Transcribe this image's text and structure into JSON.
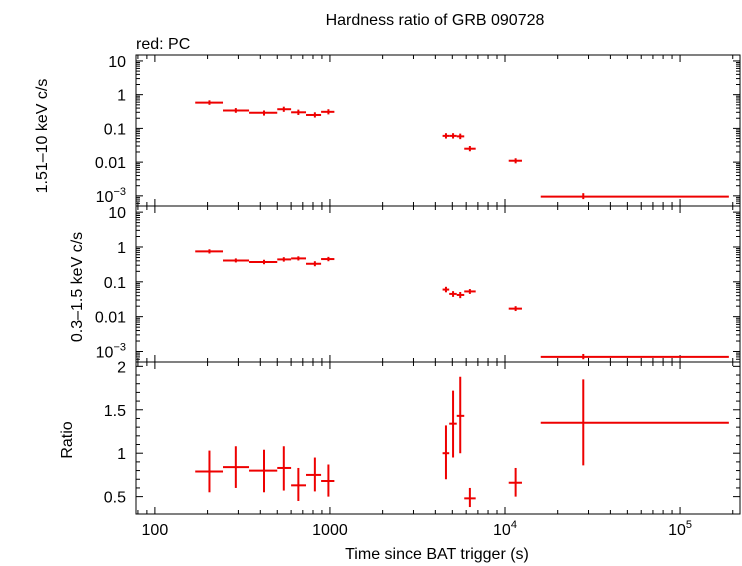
{
  "title": "Hardness ratio of GRB 090728",
  "subtitle": "red: PC",
  "xlabel": "Time since BAT trigger (s)",
  "x_ticks": [
    {
      "value": 100,
      "base": "100",
      "sup": ""
    },
    {
      "value": 1000,
      "base": "1000",
      "sup": ""
    },
    {
      "value": 10000,
      "base": "10",
      "sup": "4"
    },
    {
      "value": 100000,
      "base": "10",
      "sup": "5"
    }
  ],
  "colors": {
    "series": "#ee0000",
    "axes": "#000000"
  },
  "chart_data": [
    {
      "type": "scatter",
      "panel": "top",
      "ylabel": "1.51–10 keV c/s",
      "yscale": "log",
      "xscale": "log",
      "ylim": [
        0.0005,
        15
      ],
      "xlim": [
        78,
        220000
      ],
      "y_ticks": [
        {
          "value": 10,
          "base": "10",
          "sup": ""
        },
        {
          "value": 1,
          "base": "1",
          "sup": ""
        },
        {
          "value": 0.1,
          "base": "0.1",
          "sup": ""
        },
        {
          "value": 0.01,
          "base": "0.01",
          "sup": ""
        },
        {
          "value": 0.001,
          "base": "10",
          "sup": "−3"
        }
      ],
      "series": [
        {
          "name": "PC",
          "points": [
            {
              "x": 205,
              "xlo": 170,
              "xhi": 245,
              "y": 0.58,
              "ylo": 0.5,
              "yhi": 0.68
            },
            {
              "x": 290,
              "xlo": 245,
              "xhi": 345,
              "y": 0.34,
              "ylo": 0.29,
              "yhi": 0.4
            },
            {
              "x": 420,
              "xlo": 345,
              "xhi": 500,
              "y": 0.29,
              "ylo": 0.24,
              "yhi": 0.34
            },
            {
              "x": 545,
              "xlo": 500,
              "xhi": 600,
              "y": 0.37,
              "ylo": 0.31,
              "yhi": 0.44
            },
            {
              "x": 660,
              "xlo": 600,
              "xhi": 730,
              "y": 0.3,
              "ylo": 0.25,
              "yhi": 0.36
            },
            {
              "x": 820,
              "xlo": 730,
              "xhi": 890,
              "y": 0.25,
              "ylo": 0.21,
              "yhi": 0.3
            },
            {
              "x": 980,
              "xlo": 890,
              "xhi": 1060,
              "y": 0.31,
              "ylo": 0.26,
              "yhi": 0.37
            },
            {
              "x": 4600,
              "xlo": 4400,
              "xhi": 4800,
              "y": 0.06,
              "ylo": 0.05,
              "yhi": 0.072
            },
            {
              "x": 5050,
              "xlo": 4800,
              "xhi": 5300,
              "y": 0.06,
              "ylo": 0.05,
              "yhi": 0.072
            },
            {
              "x": 5550,
              "xlo": 5300,
              "xhi": 5850,
              "y": 0.058,
              "ylo": 0.048,
              "yhi": 0.07
            },
            {
              "x": 6300,
              "xlo": 5850,
              "xhi": 6800,
              "y": 0.025,
              "ylo": 0.021,
              "yhi": 0.03
            },
            {
              "x": 11500,
              "xlo": 10500,
              "xhi": 12500,
              "y": 0.011,
              "ylo": 0.0092,
              "yhi": 0.013
            },
            {
              "x": 28000,
              "xlo": 16000,
              "xhi": 190000,
              "y": 0.00095,
              "ylo": 0.0008,
              "yhi": 0.0012
            }
          ]
        }
      ]
    },
    {
      "type": "scatter",
      "panel": "middle",
      "ylabel": "0.3–1.5 keV c/s",
      "yscale": "log",
      "xscale": "log",
      "ylim": [
        0.0005,
        15
      ],
      "xlim": [
        78,
        220000
      ],
      "y_ticks": [
        {
          "value": 10,
          "base": "10",
          "sup": ""
        },
        {
          "value": 1,
          "base": "1",
          "sup": ""
        },
        {
          "value": 0.1,
          "base": "0.1",
          "sup": ""
        },
        {
          "value": 0.01,
          "base": "0.01",
          "sup": ""
        },
        {
          "value": 0.001,
          "base": "10",
          "sup": "−3"
        }
      ],
      "series": [
        {
          "name": "PC",
          "points": [
            {
              "x": 205,
              "xlo": 170,
              "xhi": 245,
              "y": 0.75,
              "ylo": 0.65,
              "yhi": 0.86
            },
            {
              "x": 290,
              "xlo": 245,
              "xhi": 345,
              "y": 0.41,
              "ylo": 0.36,
              "yhi": 0.47
            },
            {
              "x": 420,
              "xlo": 345,
              "xhi": 500,
              "y": 0.37,
              "ylo": 0.32,
              "yhi": 0.43
            },
            {
              "x": 545,
              "xlo": 500,
              "xhi": 600,
              "y": 0.44,
              "ylo": 0.38,
              "yhi": 0.51
            },
            {
              "x": 660,
              "xlo": 600,
              "xhi": 730,
              "y": 0.47,
              "ylo": 0.41,
              "yhi": 0.54
            },
            {
              "x": 820,
              "xlo": 730,
              "xhi": 890,
              "y": 0.33,
              "ylo": 0.28,
              "yhi": 0.39
            },
            {
              "x": 980,
              "xlo": 890,
              "xhi": 1060,
              "y": 0.45,
              "ylo": 0.39,
              "yhi": 0.52
            },
            {
              "x": 4600,
              "xlo": 4400,
              "xhi": 4800,
              "y": 0.06,
              "ylo": 0.05,
              "yhi": 0.072
            },
            {
              "x": 5050,
              "xlo": 4800,
              "xhi": 5300,
              "y": 0.045,
              "ylo": 0.037,
              "yhi": 0.054
            },
            {
              "x": 5550,
              "xlo": 5300,
              "xhi": 5850,
              "y": 0.042,
              "ylo": 0.034,
              "yhi": 0.051
            },
            {
              "x": 6300,
              "xlo": 5850,
              "xhi": 6800,
              "y": 0.053,
              "ylo": 0.045,
              "yhi": 0.062
            },
            {
              "x": 11500,
              "xlo": 10500,
              "xhi": 12500,
              "y": 0.017,
              "ylo": 0.0145,
              "yhi": 0.02
            },
            {
              "x": 28000,
              "xlo": 16000,
              "xhi": 190000,
              "y": 0.0007,
              "ylo": 0.0006,
              "yhi": 0.00085
            }
          ]
        }
      ]
    },
    {
      "type": "scatter",
      "panel": "bottom",
      "ylabel": "Ratio",
      "yscale": "linear",
      "xscale": "log",
      "ylim": [
        0.3,
        2.05
      ],
      "xlim": [
        78,
        220000
      ],
      "y_ticks": [
        {
          "value": 2,
          "base": "2",
          "sup": ""
        },
        {
          "value": 1.5,
          "base": "1.5",
          "sup": ""
        },
        {
          "value": 1,
          "base": "1",
          "sup": ""
        },
        {
          "value": 0.5,
          "base": "0.5",
          "sup": ""
        }
      ],
      "series": [
        {
          "name": "PC",
          "points": [
            {
              "x": 205,
              "xlo": 170,
              "xhi": 245,
              "y": 0.79,
              "ylo": 0.55,
              "yhi": 1.03
            },
            {
              "x": 290,
              "xlo": 245,
              "xhi": 345,
              "y": 0.84,
              "ylo": 0.6,
              "yhi": 1.08
            },
            {
              "x": 420,
              "xlo": 345,
              "xhi": 500,
              "y": 0.8,
              "ylo": 0.55,
              "yhi": 1.04
            },
            {
              "x": 545,
              "xlo": 500,
              "xhi": 600,
              "y": 0.83,
              "ylo": 0.57,
              "yhi": 1.08
            },
            {
              "x": 660,
              "xlo": 600,
              "xhi": 730,
              "y": 0.63,
              "ylo": 0.45,
              "yhi": 0.83
            },
            {
              "x": 820,
              "xlo": 730,
              "xhi": 890,
              "y": 0.75,
              "ylo": 0.56,
              "yhi": 0.95
            },
            {
              "x": 980,
              "xlo": 890,
              "xhi": 1060,
              "y": 0.68,
              "ylo": 0.5,
              "yhi": 0.87
            },
            {
              "x": 4600,
              "xlo": 4400,
              "xhi": 4800,
              "y": 1.0,
              "ylo": 0.7,
              "yhi": 1.32
            },
            {
              "x": 5050,
              "xlo": 4800,
              "xhi": 5300,
              "y": 1.34,
              "ylo": 0.95,
              "yhi": 1.72
            },
            {
              "x": 5550,
              "xlo": 5300,
              "xhi": 5850,
              "y": 1.43,
              "ylo": 1.0,
              "yhi": 1.88
            },
            {
              "x": 6300,
              "xlo": 5850,
              "xhi": 6800,
              "y": 0.48,
              "ylo": 0.38,
              "yhi": 0.6
            },
            {
              "x": 11500,
              "xlo": 10500,
              "xhi": 12500,
              "y": 0.66,
              "ylo": 0.5,
              "yhi": 0.83
            },
            {
              "x": 28000,
              "xlo": 16000,
              "xhi": 190000,
              "y": 1.35,
              "ylo": 0.86,
              "yhi": 1.85
            }
          ]
        }
      ]
    }
  ]
}
